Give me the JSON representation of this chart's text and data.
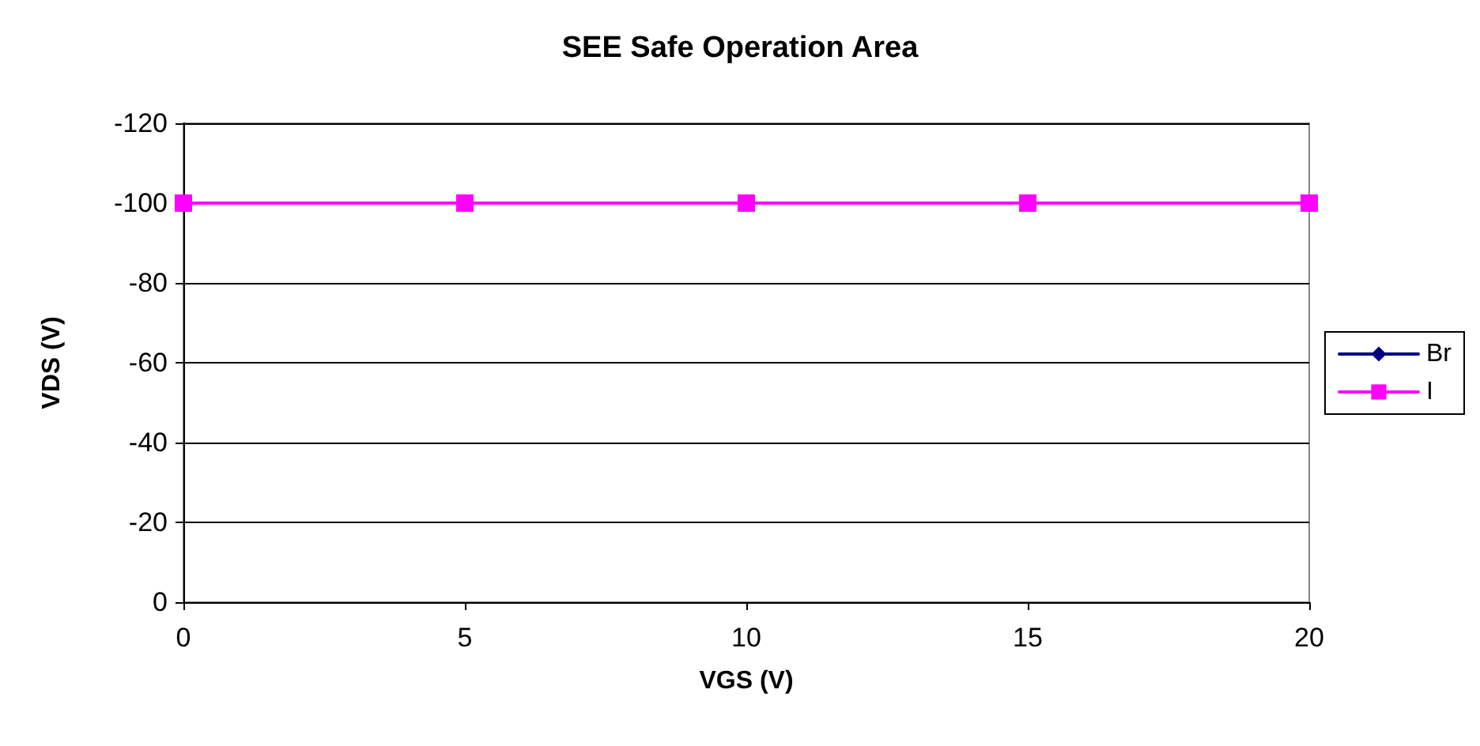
{
  "chart_data": {
    "type": "line",
    "title": "SEE Safe Operation Area",
    "xlabel": "VGS (V)",
    "ylabel": "VDS (V)",
    "x": [
      0,
      5,
      10,
      15,
      20
    ],
    "xlim": [
      0,
      20
    ],
    "xticks": [
      0,
      5,
      10,
      15,
      20
    ],
    "ylim": [
      0,
      -120
    ],
    "yticks": [
      0,
      -20,
      -40,
      -60,
      -80,
      -100,
      -120
    ],
    "grid": "y",
    "legend": "right",
    "series": [
      {
        "name": "Br",
        "color": "#000080",
        "marker": "diamond",
        "values": [
          null,
          null,
          null,
          null,
          null
        ]
      },
      {
        "name": "I",
        "color": "#ff00ff",
        "marker": "square",
        "values": [
          -100,
          -100,
          -100,
          -100,
          -100
        ]
      }
    ]
  }
}
